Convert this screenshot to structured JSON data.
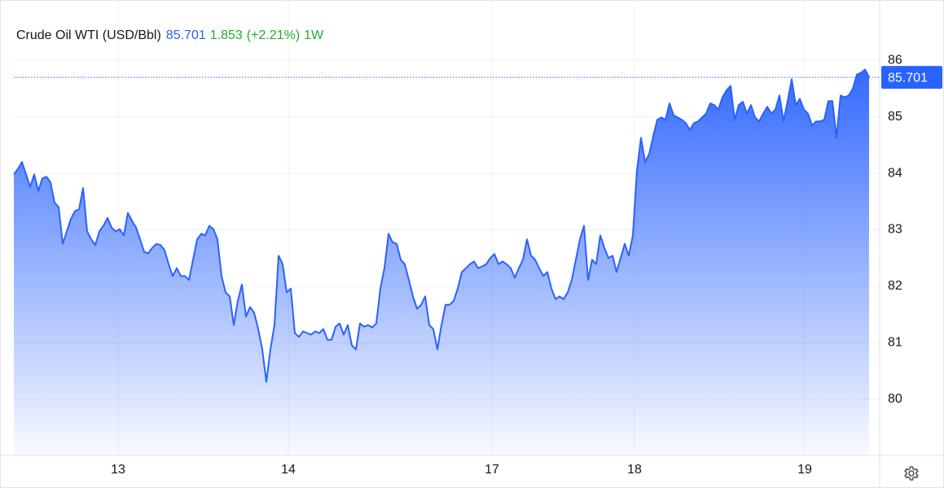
{
  "chart_data": {
    "type": "area",
    "title": "Crude Oil WTI (USD/Bbl)",
    "price": 85.701,
    "change": 1.853,
    "change_pct": "(+2.21%)",
    "period": "1W",
    "color": "#2962ff",
    "x": [
      0,
      1,
      2,
      3,
      4,
      5,
      6,
      7,
      8,
      9,
      10,
      11,
      12,
      13,
      14,
      15,
      16,
      17,
      18,
      19,
      20,
      21,
      22,
      23,
      24,
      25,
      26,
      27,
      28,
      29,
      30,
      31,
      32,
      33,
      34,
      35,
      36,
      37,
      38,
      39,
      40,
      41,
      42,
      43,
      44,
      45,
      46,
      47,
      48,
      49,
      50,
      51,
      52,
      53,
      54,
      55,
      56,
      57,
      58,
      59,
      60,
      61,
      62,
      63,
      64,
      65,
      66,
      67,
      68,
      69,
      70,
      71,
      72,
      73,
      74,
      75,
      76,
      77,
      78,
      79,
      80,
      81,
      82,
      83,
      84,
      85,
      86,
      87,
      88,
      89,
      90,
      91,
      92,
      93,
      94,
      95,
      96,
      97,
      98,
      99,
      100,
      101,
      102,
      103,
      104,
      105,
      106,
      107,
      108,
      109,
      110,
      111,
      112,
      113,
      114,
      115,
      116,
      117,
      118,
      119,
      120,
      121,
      122,
      123,
      124,
      125,
      126,
      127,
      128,
      129,
      130,
      131,
      132,
      133,
      134,
      135,
      136,
      137,
      138,
      139,
      140,
      141,
      142,
      143,
      144,
      145,
      146,
      147,
      148,
      149,
      150,
      151,
      152,
      153,
      154,
      155,
      156,
      157,
      158,
      159,
      160,
      161,
      162,
      163,
      164,
      165,
      166,
      167,
      168,
      169,
      170,
      171,
      172,
      173,
      174,
      175,
      176,
      177,
      178,
      179,
      180,
      181,
      182,
      183,
      184,
      185,
      186,
      187,
      188,
      189,
      190,
      191,
      192,
      193,
      194,
      195,
      196,
      197,
      198,
      199,
      200,
      201,
      202,
      203,
      204,
      205,
      206,
      207,
      208,
      209,
      210
    ],
    "values": [
      83.98,
      84.08,
      84.2,
      83.98,
      83.76,
      83.98,
      83.69,
      83.91,
      83.94,
      83.84,
      83.48,
      83.4,
      82.75,
      82.97,
      83.19,
      83.33,
      83.36,
      83.74,
      82.97,
      82.83,
      82.73,
      82.97,
      83.07,
      83.21,
      83.04,
      82.97,
      83.01,
      82.9,
      83.3,
      83.16,
      83.04,
      82.83,
      82.61,
      82.58,
      82.68,
      82.75,
      82.73,
      82.64,
      82.39,
      82.18,
      82.32,
      82.18,
      82.18,
      82.11,
      82.47,
      82.83,
      82.93,
      82.9,
      83.07,
      83.01,
      82.83,
      82.18,
      81.89,
      81.82,
      81.31,
      81.74,
      82.03,
      81.46,
      81.63,
      81.53,
      81.24,
      80.88,
      80.3,
      80.88,
      81.31,
      82.54,
      82.39,
      81.89,
      81.96,
      81.17,
      81.1,
      81.2,
      81.17,
      81.14,
      81.2,
      81.17,
      81.24,
      81.05,
      81.05,
      81.28,
      81.34,
      81.14,
      81.31,
      80.95,
      80.88,
      81.34,
      81.28,
      81.31,
      81.27,
      81.34,
      81.96,
      82.32,
      82.93,
      82.78,
      82.75,
      82.47,
      82.39,
      82.11,
      81.82,
      81.6,
      81.67,
      81.82,
      81.31,
      81.24,
      80.88,
      81.31,
      81.67,
      81.67,
      81.74,
      81.96,
      82.25,
      82.32,
      82.39,
      82.44,
      82.32,
      82.35,
      82.39,
      82.5,
      82.57,
      82.39,
      82.44,
      82.39,
      82.32,
      82.15,
      82.32,
      82.47,
      82.83,
      82.54,
      82.47,
      82.32,
      82.18,
      82.25,
      81.96,
      81.77,
      81.82,
      81.77,
      81.89,
      82.11,
      82.47,
      82.83,
      83.07,
      82.11,
      82.47,
      82.39,
      82.9,
      82.68,
      82.5,
      82.54,
      82.25,
      82.5,
      82.75,
      82.54,
      82.9,
      84.05,
      84.63,
      84.2,
      84.34,
      84.66,
      84.95,
      84.99,
      84.95,
      85.24,
      85.03,
      84.99,
      84.95,
      84.89,
      84.77,
      84.89,
      84.92,
      84.99,
      85.06,
      85.24,
      85.21,
      85.13,
      85.35,
      85.47,
      85.55,
      84.95,
      85.21,
      85.27,
      85.06,
      85.21,
      84.99,
      84.92,
      85.06,
      85.18,
      85.06,
      85.13,
      85.38,
      84.92,
      85.28,
      85.67,
      85.21,
      85.32,
      85.13,
      85.06,
      84.85,
      84.92,
      84.92,
      84.95,
      85.28,
      85.28,
      84.63,
      85.38,
      85.35,
      85.38,
      85.5,
      85.75,
      85.78,
      85.84,
      85.701
    ],
    "xlim": [
      0,
      212.6
    ],
    "xticks": [
      {
        "value": 25.6,
        "label": "13"
      },
      {
        "value": 67.4,
        "label": "14"
      },
      {
        "value": 117.4,
        "label": "17"
      },
      {
        "value": 152.4,
        "label": "18"
      },
      {
        "value": 194.2,
        "label": "19"
      }
    ],
    "ylim": [
      79,
      87
    ],
    "yticks": [
      80,
      81,
      82,
      83,
      84,
      85,
      86
    ],
    "grid": true
  }
}
